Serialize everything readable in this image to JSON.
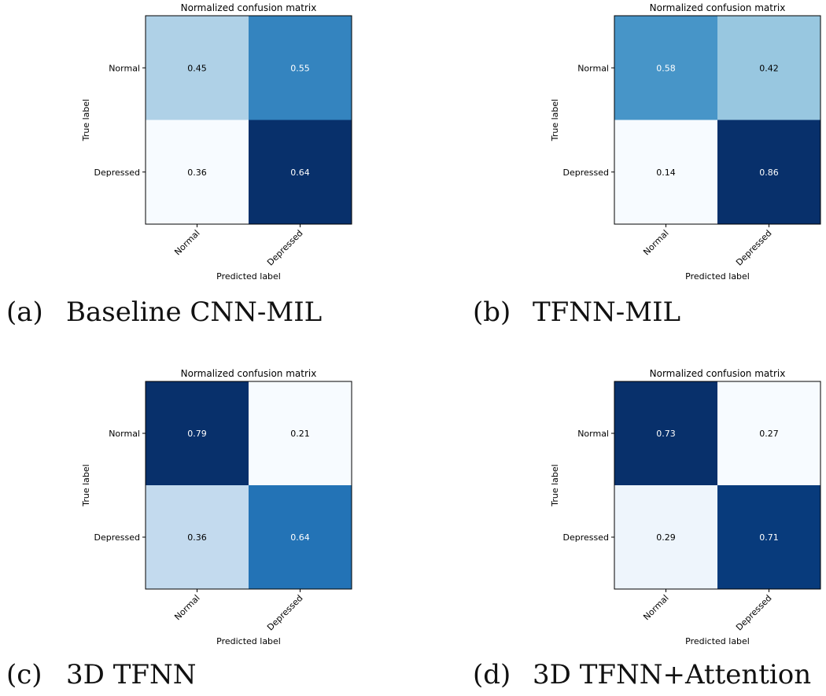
{
  "chart_data": [
    {
      "type": "heatmap",
      "title": "Normalized confusion matrix",
      "xlabel": "Predicted label",
      "ylabel": "True label",
      "x_categories": [
        "Normal",
        "Depressed"
      ],
      "y_categories": [
        "Normal",
        "Depressed"
      ],
      "values": [
        [
          0.45,
          0.55
        ],
        [
          0.36,
          0.64
        ]
      ],
      "cell_labels": [
        [
          "0.45",
          "0.55"
        ],
        [
          "0.36",
          "0.64"
        ]
      ],
      "colormap": "Blues",
      "vmin": 0.36,
      "vmax": 0.64,
      "caption_letter": "(a)",
      "caption_text": "Baseline CNN-MIL"
    },
    {
      "type": "heatmap",
      "title": "Normalized confusion matrix",
      "xlabel": "Predicted label",
      "ylabel": "True label",
      "x_categories": [
        "Normal",
        "Depressed"
      ],
      "y_categories": [
        "Normal",
        "Depressed"
      ],
      "values": [
        [
          0.58,
          0.42
        ],
        [
          0.14,
          0.86
        ]
      ],
      "cell_labels": [
        [
          "0.58",
          "0.42"
        ],
        [
          "0.14",
          "0.86"
        ]
      ],
      "colormap": "Blues",
      "vmin": 0.14,
      "vmax": 0.86,
      "caption_letter": "(b)",
      "caption_text": "TFNN-MIL"
    },
    {
      "type": "heatmap",
      "title": "Normalized confusion matrix",
      "xlabel": "Predicted label",
      "ylabel": "True label",
      "x_categories": [
        "Normal",
        "Depressed"
      ],
      "y_categories": [
        "Normal",
        "Depressed"
      ],
      "values": [
        [
          0.79,
          0.21
        ],
        [
          0.36,
          0.64
        ]
      ],
      "cell_labels": [
        [
          "0.79",
          "0.21"
        ],
        [
          "0.36",
          "0.64"
        ]
      ],
      "colormap": "Blues",
      "vmin": 0.21,
      "vmax": 0.79,
      "caption_letter": "(c)",
      "caption_text": "3D TFNN"
    },
    {
      "type": "heatmap",
      "title": "Normalized confusion matrix",
      "xlabel": "Predicted label",
      "ylabel": "True label",
      "x_categories": [
        "Normal",
        "Depressed"
      ],
      "y_categories": [
        "Normal",
        "Depressed"
      ],
      "values": [
        [
          0.73,
          0.27
        ],
        [
          0.29,
          0.71
        ]
      ],
      "cell_labels": [
        [
          "0.73",
          "0.27"
        ],
        [
          "0.29",
          "0.71"
        ]
      ],
      "colormap": "Blues",
      "vmin": 0.27,
      "vmax": 0.73,
      "caption_letter": "(d)",
      "caption_text": "3D TFNN+Attention"
    }
  ]
}
